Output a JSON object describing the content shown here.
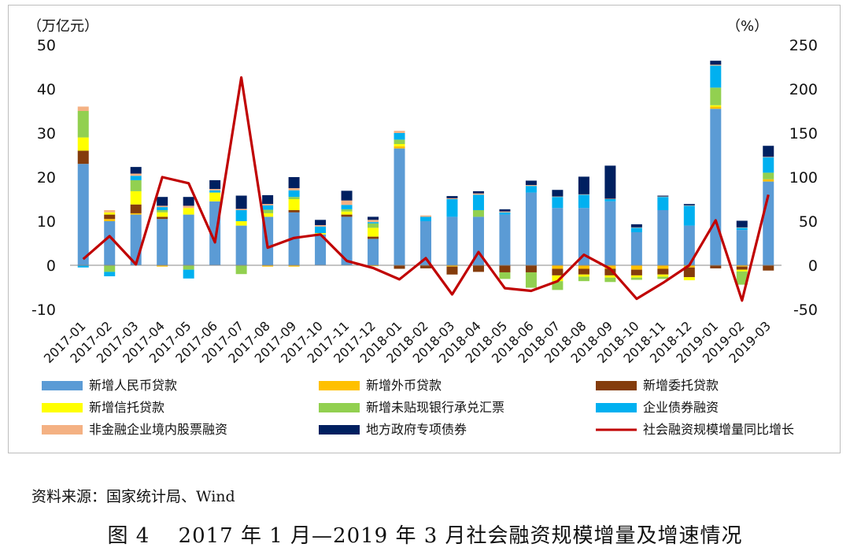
{
  "source_note": "资料来源：国家统计局、Wind",
  "caption": "图 4　 2017 年 1 月—2019 年 3 月社会融资规模增量及增速情况",
  "chart_data": {
    "type": "bar",
    "stacked": true,
    "left_unit": "（万亿元）",
    "right_unit": "（%）",
    "ylim": [
      -10,
      50
    ],
    "y_ticks": [
      -10,
      0,
      10,
      20,
      30,
      40,
      50
    ],
    "y2lim": [
      -50,
      250
    ],
    "y2_ticks": [
      -50,
      0,
      50,
      100,
      150,
      200,
      250
    ],
    "legend_position": "bottom",
    "grid": false,
    "categories": [
      "2017-01",
      "2017-02",
      "2017-03",
      "2017-04",
      "2017-05",
      "2017-06",
      "2017-07",
      "2017-08",
      "2017-09",
      "2017-10",
      "2017-11",
      "2017-12",
      "2018-01",
      "2018-02",
      "2018-03",
      "2018-04",
      "2018-05",
      "2018-06",
      "2018-07",
      "2018-08",
      "2018-09",
      "2018-10",
      "2018-11",
      "2018-12",
      "2019-01",
      "2019-02",
      "2019-03"
    ],
    "series": [
      {
        "name": "新增人民币贷款",
        "color": "#5b9bd5",
        "values": [
          23.0,
          10.0,
          11.5,
          10.5,
          11.5,
          14.5,
          9.0,
          11.0,
          12.0,
          7.0,
          11.0,
          6.0,
          26.5,
          10.0,
          11.0,
          11.0,
          11.5,
          16.5,
          13.0,
          13.0,
          14.5,
          7.5,
          12.5,
          9.0,
          35.5,
          8.0,
          19.0
        ]
      },
      {
        "name": "新增外币贷款",
        "color": "#ffc000",
        "values": [
          0.0,
          0.5,
          0.3,
          -0.3,
          0.0,
          0.0,
          0.0,
          -0.3,
          -0.3,
          0.0,
          0.0,
          -0.2,
          0.5,
          0.0,
          -0.3,
          0.0,
          0.0,
          0.0,
          -0.8,
          -0.8,
          -0.8,
          -1.0,
          -0.8,
          -0.5,
          0.5,
          -0.3,
          0.5
        ]
      },
      {
        "name": "新增委托贷款",
        "color": "#843c0c",
        "values": [
          3.0,
          1.0,
          2.0,
          0.5,
          0.0,
          0.0,
          0.0,
          0.0,
          0.5,
          0.0,
          0.5,
          0.5,
          -0.8,
          -0.7,
          -1.8,
          -1.5,
          -1.6,
          -1.6,
          -1.5,
          -1.3,
          -1.5,
          -1.3,
          -1.3,
          -2.2,
          -0.7,
          -0.7,
          -1.2
        ]
      },
      {
        "name": "新增信托贷款",
        "color": "#ffff00",
        "values": [
          3.0,
          0.5,
          3.0,
          1.0,
          1.5,
          2.0,
          1.0,
          0.8,
          2.5,
          0.3,
          0.7,
          2.0,
          0.5,
          0.0,
          0.0,
          0.0,
          0.0,
          0.0,
          -1.3,
          -0.5,
          -0.5,
          -0.5,
          -0.5,
          -0.7,
          0.3,
          -0.4,
          0.0
        ]
      },
      {
        "name": "新增未贴现银行承兑汇票",
        "color": "#92d050",
        "values": [
          6.0,
          -1.5,
          2.5,
          0.5,
          -1.0,
          0.0,
          -2.0,
          0.8,
          0.5,
          0.0,
          0.5,
          1.0,
          1.0,
          0.0,
          0.0,
          1.5,
          -1.5,
          -3.5,
          -2.0,
          -1.0,
          -1.0,
          -0.5,
          -0.5,
          0.0,
          4.0,
          -3.0,
          1.5
        ]
      },
      {
        "name": "企业债券融资",
        "color": "#00b0f0",
        "values": [
          -0.5,
          -1.0,
          1.0,
          0.7,
          -2.0,
          0.5,
          2.5,
          1.0,
          1.5,
          1.5,
          1.0,
          0.3,
          1.5,
          1.0,
          4.0,
          3.5,
          0.5,
          1.5,
          2.5,
          3.0,
          0.5,
          1.0,
          3.0,
          4.5,
          5.0,
          0.5,
          3.5
        ]
      },
      {
        "name": "非金融企业境内股票融资",
        "color": "#f4b183",
        "values": [
          1.0,
          0.5,
          0.5,
          0.3,
          0.5,
          0.3,
          0.3,
          0.3,
          0.5,
          0.3,
          1.0,
          0.5,
          0.5,
          0.3,
          0.2,
          0.3,
          0.2,
          0.2,
          0.1,
          0.1,
          0.1,
          0.1,
          0.1,
          0.1,
          0.2,
          0.1,
          0.1
        ]
      },
      {
        "name": "地方政府专项债券",
        "color": "#002060",
        "values": [
          0.0,
          0.0,
          1.5,
          2.0,
          2.0,
          2.0,
          3.0,
          2.0,
          2.5,
          1.2,
          2.2,
          0.7,
          0.0,
          0.0,
          0.5,
          0.5,
          0.5,
          1.0,
          1.5,
          4.0,
          7.5,
          0.7,
          0.2,
          0.3,
          0.9,
          1.5,
          2.5
        ]
      }
    ],
    "line_series": {
      "name": "社会融资规模增量同比增长",
      "color": "#c00000",
      "axis": "right",
      "values": [
        7,
        33,
        1,
        100,
        93,
        26,
        213,
        20,
        31,
        35,
        5,
        -3,
        -16,
        8,
        -33,
        15,
        -26,
        -29,
        -18,
        12,
        -4,
        -38,
        -20,
        0,
        51,
        -40,
        80
      ]
    }
  }
}
